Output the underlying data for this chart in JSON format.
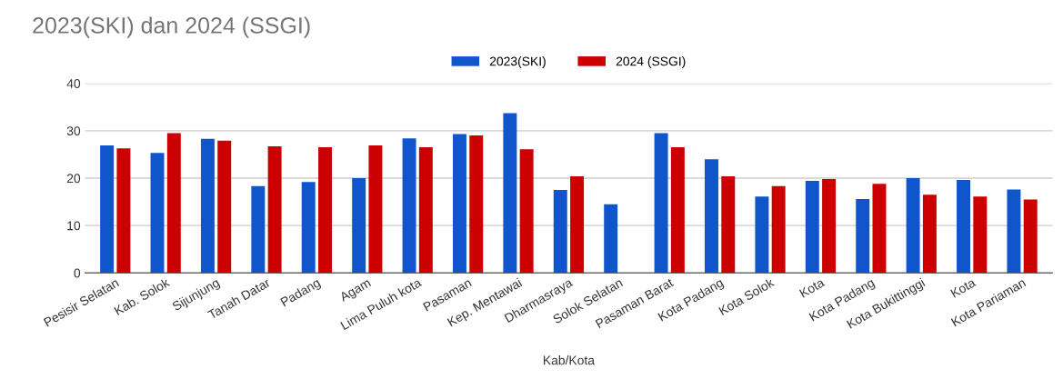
{
  "chart_data": {
    "type": "bar",
    "title": "2023(SKI) dan 2024 (SSGI)",
    "xlabel": "Kab/Kota",
    "categories": [
      "Pesisir Selatan",
      "Kab. Solok",
      "Sijunjung",
      "Tanah Datar",
      "Padang",
      "Agam",
      "Lima Puluh kota",
      "Pasaman",
      "Kep. Mentawai",
      "Dharmasraya",
      "Solok Selatan",
      "Pasaman Barat",
      "Kota Padang",
      "Kota Solok",
      "Kota",
      "Kota Padang",
      "Kota Bukittinggi",
      "Kota",
      "Kota Pariaman"
    ],
    "series": [
      {
        "name": "2023(SKI)",
        "color": "#1155cc",
        "values": [
          26.9,
          25.3,
          28.3,
          18.3,
          19.2,
          20.0,
          28.4,
          29.3,
          33.7,
          17.5,
          14.5,
          29.5,
          24.0,
          16.1,
          19.4,
          15.6,
          20.0,
          19.6,
          17.6
        ]
      },
      {
        "name": "2024 (SSGI)",
        "color": "#cc0000",
        "values": [
          26.3,
          29.5,
          27.9,
          26.7,
          26.5,
          26.9,
          26.5,
          29.0,
          26.1,
          20.4,
          null,
          26.5,
          20.4,
          18.3,
          19.8,
          18.8,
          16.5,
          16.1,
          15.5
        ]
      }
    ],
    "ylim": [
      0,
      40
    ],
    "yticks": [
      0,
      10,
      20,
      30,
      40
    ],
    "grid": "y",
    "legend": "top"
  }
}
